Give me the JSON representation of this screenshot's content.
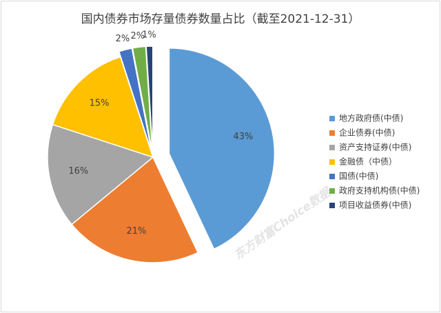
{
  "chart_data": {
    "type": "pie",
    "title": "国内债券市场存量债券数量占比（截至2021-12-31）",
    "categories": [
      "地方政府债(中债)",
      "企业债券(中债)",
      "资产支持证券(中债)",
      "金融债（中债）",
      "国债(中债)",
      "政府支持机构债(中债)",
      "项目收益债券(中债)"
    ],
    "values": [
      43,
      21,
      16,
      15,
      2,
      2,
      1
    ],
    "value_labels": [
      "43%",
      "21%",
      "16%",
      "15%",
      "2%",
      "2%",
      "1%"
    ],
    "colors": [
      "#5b9bd5",
      "#ed7d31",
      "#a5a5a5",
      "#ffc000",
      "#4472c4",
      "#70ad47",
      "#264478"
    ],
    "legend": "right",
    "watermark": "东方财富Choice数据"
  }
}
